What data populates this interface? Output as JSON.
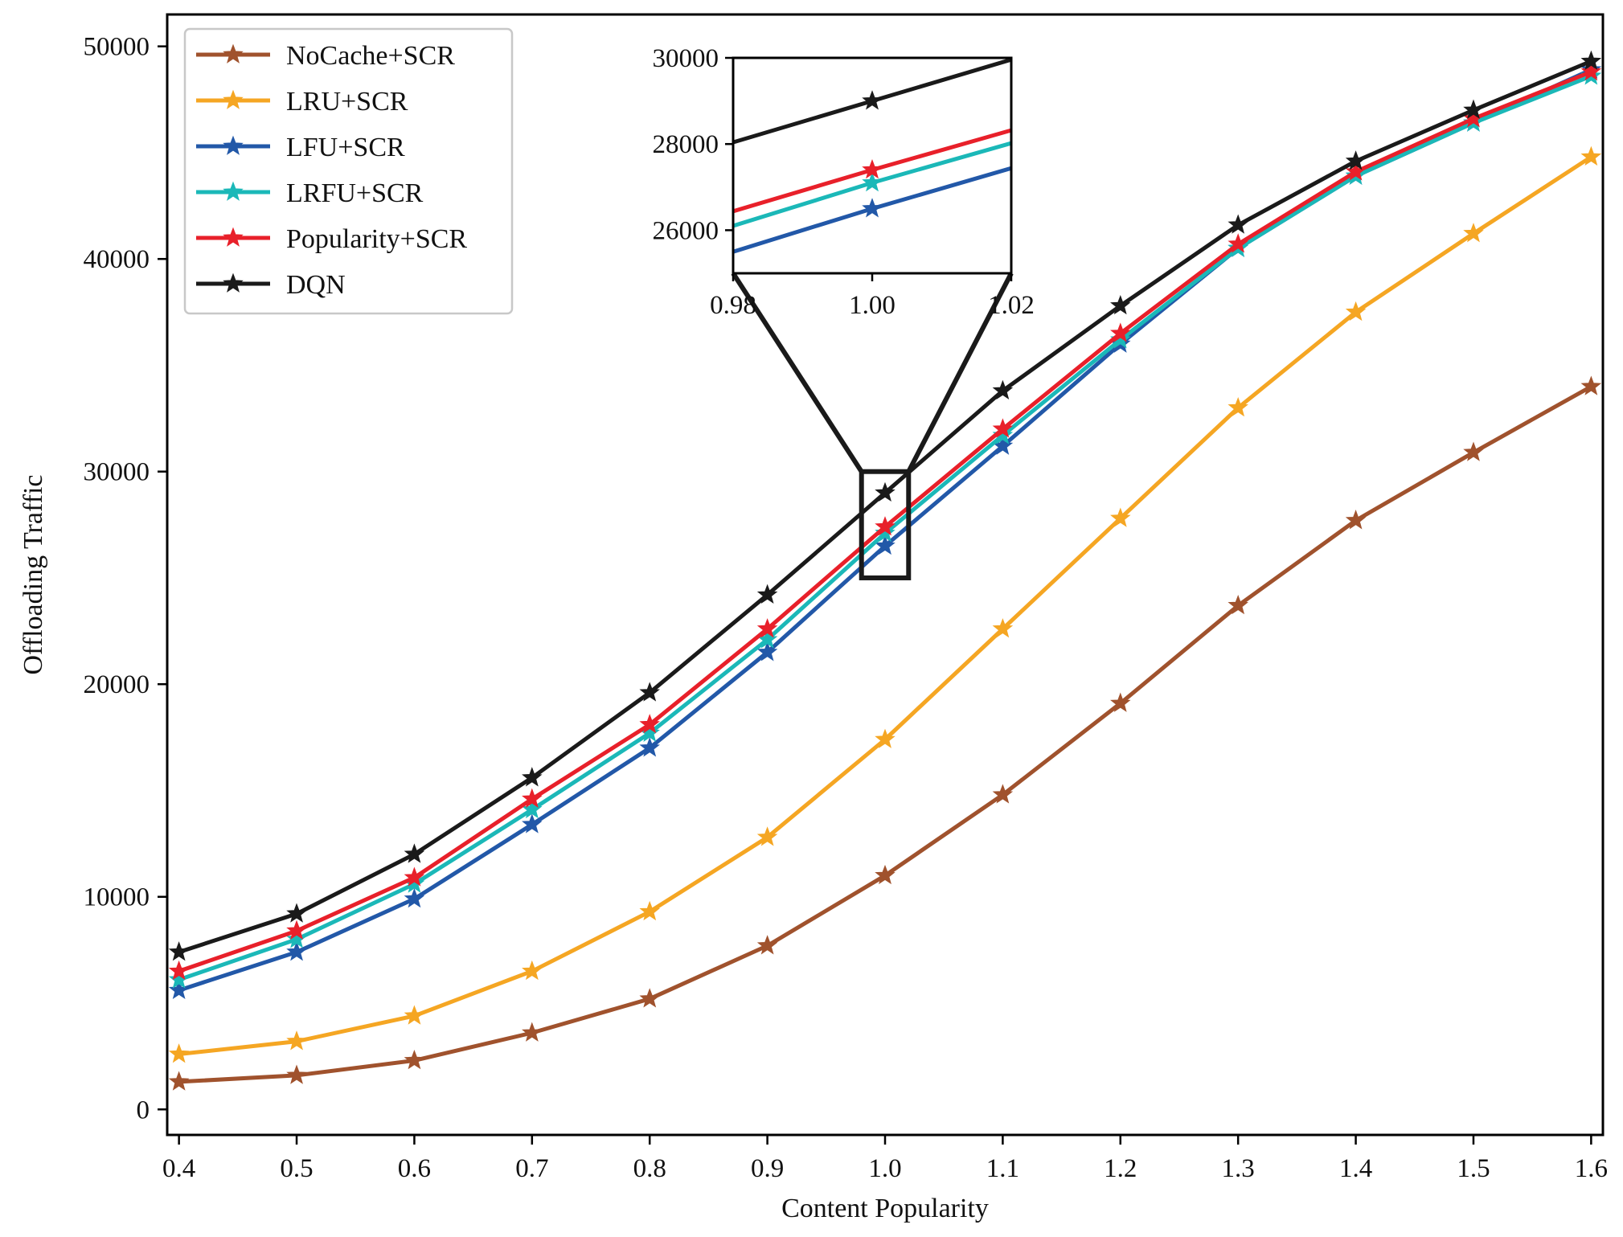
{
  "chart_data": {
    "type": "line",
    "xlabel": "Content Popularity",
    "ylabel": "Offloading Traffic",
    "xlim": [
      0.39,
      1.61
    ],
    "ylim": [
      -1200,
      51500
    ],
    "x": [
      0.4,
      0.5,
      0.6,
      0.7,
      0.8,
      0.9,
      1.0,
      1.1,
      1.2,
      1.3,
      1.4,
      1.5,
      1.6
    ],
    "x_tick_labels": [
      "0.4",
      "0.5",
      "0.6",
      "0.7",
      "0.8",
      "0.9",
      "1.0",
      "1.1",
      "1.2",
      "1.3",
      "1.4",
      "1.5",
      "1.6"
    ],
    "y_ticks": [
      0,
      10000,
      20000,
      30000,
      40000,
      50000
    ],
    "y_tick_labels": [
      "0",
      "10000",
      "20000",
      "30000",
      "40000",
      "50000"
    ],
    "legend_position": "top-left",
    "series": [
      {
        "name": "NoCache+SCR",
        "color": "#A0522D",
        "values": [
          1300,
          1600,
          2300,
          3600,
          5200,
          7700,
          11000,
          14800,
          19100,
          23700,
          27700,
          30900,
          34000
        ]
      },
      {
        "name": "LRU+SCR",
        "color": "#F5A623",
        "values": [
          2600,
          3200,
          4400,
          6500,
          9300,
          12800,
          17400,
          22600,
          27800,
          33000,
          37500,
          41200,
          44800
        ]
      },
      {
        "name": "LFU+SCR",
        "color": "#2258A8",
        "values": [
          5600,
          7400,
          9900,
          13400,
          17000,
          21500,
          26500,
          31200,
          36000,
          40500,
          43900,
          46400,
          48900
        ]
      },
      {
        "name": "LRFU+SCR",
        "color": "#1BB8B8",
        "values": [
          6100,
          8000,
          10600,
          14100,
          17700,
          22100,
          27100,
          31700,
          36200,
          40500,
          43900,
          46400,
          48600
        ]
      },
      {
        "name": "Popularity+SCR",
        "color": "#E8202A",
        "values": [
          6500,
          8400,
          10900,
          14600,
          18100,
          22600,
          27400,
          32000,
          36500,
          40700,
          44100,
          46600,
          48800
        ]
      },
      {
        "name": "DQN",
        "color": "#1A1A1A",
        "values": [
          7400,
          9200,
          12000,
          15600,
          19600,
          24200,
          29000,
          33800,
          37800,
          41600,
          44600,
          47000,
          49300
        ]
      }
    ],
    "inset": {
      "xlim": [
        0.98,
        1.02
      ],
      "ylim": [
        25000,
        30000
      ],
      "x_ticks": [
        0.98,
        1.0,
        1.02
      ],
      "x_tick_labels": [
        "0.98",
        "1.00",
        "1.02"
      ],
      "y_ticks": [
        26000,
        28000,
        30000
      ],
      "y_tick_labels": [
        "26000",
        "28000",
        "30000"
      ]
    }
  }
}
